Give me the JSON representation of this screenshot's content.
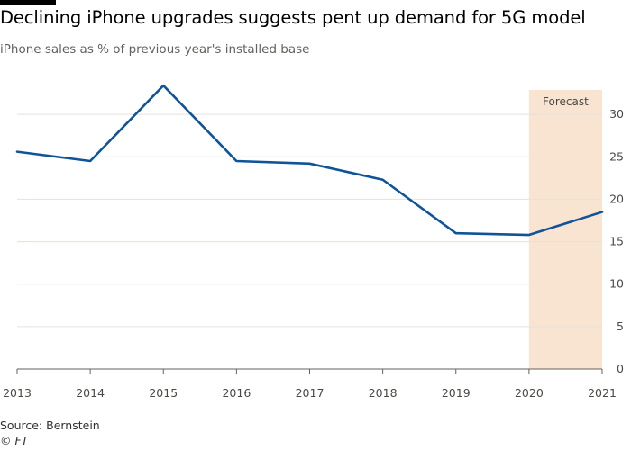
{
  "title": "Declining iPhone upgrades suggests pent up demand for 5G model",
  "subtitle": "iPhone sales as % of previous year's installed base",
  "source": "Source: Bernstein",
  "credit": "© FT",
  "colors": {
    "line": "#0f5499",
    "forecast_band": "#f9e3d1",
    "grid": "#e6e1dc",
    "axis": "#66605c",
    "top_bar": "#000000"
  },
  "chart_data": {
    "type": "line",
    "title": "",
    "xlabel": "",
    "ylabel": "",
    "x": [
      2013,
      2014,
      2015,
      2016,
      2017,
      2018,
      2019,
      2020,
      2021
    ],
    "series": [
      {
        "values": [
          25.6,
          24.5,
          33.4,
          24.5,
          24.2,
          22.3,
          16.0,
          15.8,
          18.5
        ]
      }
    ],
    "xlim": [
      2013,
      2021
    ],
    "ylim": [
      0,
      35
    ],
    "yticks": [
      0,
      5,
      10,
      15,
      20,
      25,
      30
    ],
    "y_axis_side": "right",
    "grid": true,
    "forecast": {
      "label": "Forecast",
      "from": 2020,
      "to": 2021
    }
  }
}
